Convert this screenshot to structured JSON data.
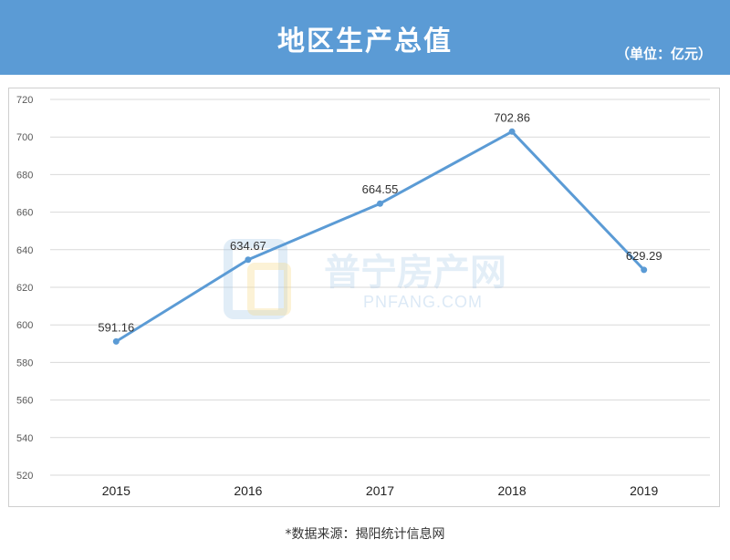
{
  "header": {
    "title": "地区生产总值",
    "unit": "（单位：亿元）"
  },
  "chart_data": {
    "type": "line",
    "title": "地区生产总值",
    "unit": "（单位：亿元）",
    "categories": [
      "2015",
      "2016",
      "2017",
      "2018",
      "2019"
    ],
    "series": [
      {
        "values": [
          591.16,
          634.67,
          664.55,
          702.86,
          629.29
        ],
        "color": "#5b9bd5"
      }
    ],
    "data_labels": [
      "591.16",
      "634.67",
      "664.55",
      "702.86",
      "629.29"
    ],
    "ylim": [
      520,
      720
    ],
    "yticks": [
      520,
      540,
      560,
      580,
      600,
      620,
      640,
      660,
      680,
      700,
      720
    ],
    "grid": true,
    "legend": "none"
  },
  "watermark": {
    "text": "普宁房产网",
    "sub": "PNFANG.COM",
    "color": "#9dc3e6"
  },
  "footer": {
    "source": "*数据来源：揭阳统计信息网"
  }
}
